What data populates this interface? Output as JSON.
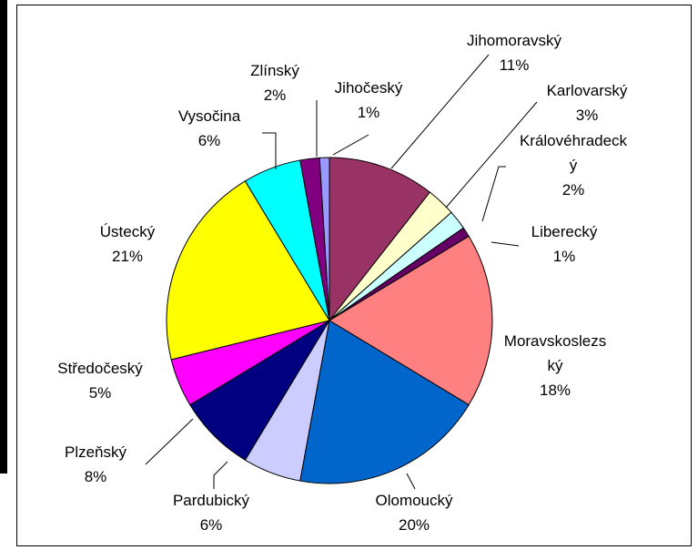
{
  "chart_data": {
    "type": "pie",
    "categories": [
      "Jihomoravský",
      "Karlovarský",
      "Královéhradecký",
      "Liberecký",
      "Moravskoslezský",
      "Olomoucký",
      "Pardubický",
      "Plzeňský",
      "Středočeský",
      "Ústecký",
      "Vysočina",
      "Zlínský",
      "Jihočeský"
    ],
    "values": [
      11,
      3,
      2,
      1,
      18,
      20,
      6,
      8,
      5,
      21,
      6,
      2,
      1
    ],
    "value_labels": [
      "11%",
      "3%",
      "2%",
      "1%",
      "18%",
      "20%",
      "6%",
      "8%",
      "5%",
      "21%",
      "6%",
      "2%",
      "1%"
    ],
    "colors": [
      "#993366",
      "#FFFFCC",
      "#CCFFFF",
      "#660066",
      "#FF8080",
      "#0066CC",
      "#CCCCFF",
      "#000080",
      "#FF00FF",
      "#FFFF00",
      "#00FFFF",
      "#800080",
      "#9999FF"
    ]
  }
}
